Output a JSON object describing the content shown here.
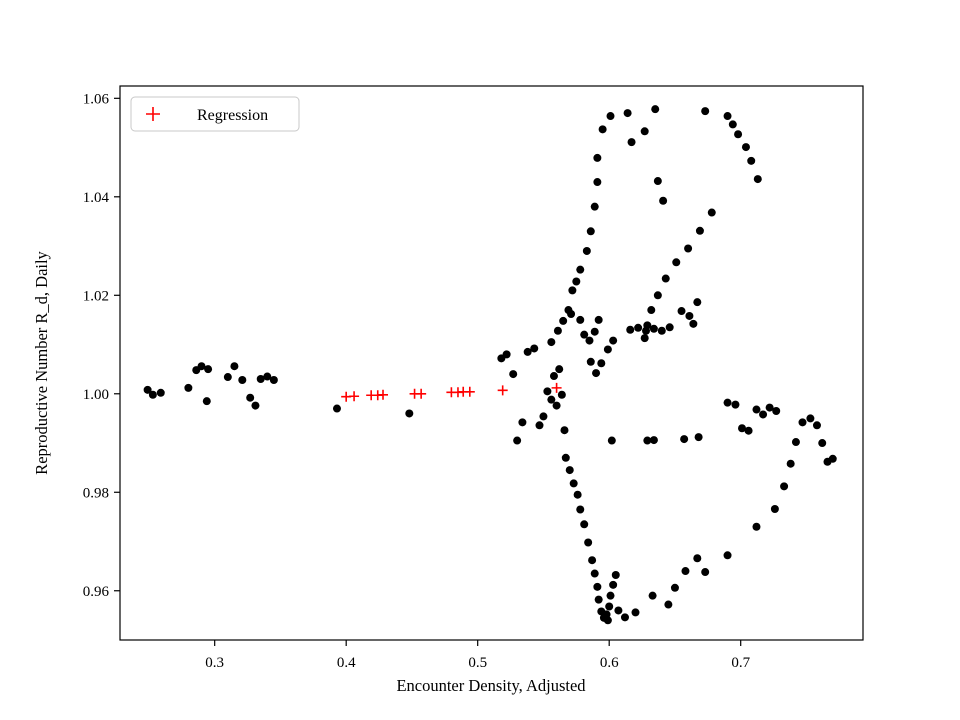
{
  "figure": {
    "background": "#ffffff"
  },
  "colors": {
    "scatter_points": "#000000",
    "regression_marker": "#ff0000",
    "axis": "#000000",
    "legend_border": "#c8c8c8"
  },
  "chart_data": {
    "type": "scatter",
    "title": "",
    "xlabel": "Encounter Density, Adjusted",
    "ylabel": "Reproductive Number R_d, Daily",
    "xlim": [
      0.228,
      0.793
    ],
    "ylim": [
      0.95,
      1.0625
    ],
    "xticks": [
      0.3,
      0.4,
      0.5,
      0.6,
      0.7
    ],
    "xtick_labels": [
      "0.3",
      "0.4",
      "0.5",
      "0.6",
      "0.7"
    ],
    "yticks": [
      0.96,
      0.98,
      1.0,
      1.02,
      1.04,
      1.06
    ],
    "ytick_labels": [
      "0.96",
      "0.98",
      "1.00",
      "1.02",
      "1.04",
      "1.06"
    ],
    "grid": false,
    "legend": {
      "position": "upper left",
      "entries": [
        {
          "label": "Regression",
          "marker": "plus",
          "color": "#ff0000"
        }
      ]
    },
    "series": [
      {
        "name": "observations",
        "type": "scatter",
        "marker": "circle",
        "color": "#000000",
        "points": [
          [
            0.249,
            1.0008
          ],
          [
            0.253,
            0.9998
          ],
          [
            0.259,
            1.0002
          ],
          [
            0.28,
            1.0012
          ],
          [
            0.286,
            1.0048
          ],
          [
            0.29,
            1.0056
          ],
          [
            0.295,
            1.005
          ],
          [
            0.294,
            0.9985
          ],
          [
            0.31,
            1.0034
          ],
          [
            0.315,
            1.0056
          ],
          [
            0.321,
            1.0028
          ],
          [
            0.327,
            0.9992
          ],
          [
            0.331,
            0.9976
          ],
          [
            0.335,
            1.003
          ],
          [
            0.34,
            1.0035
          ],
          [
            0.345,
            1.0028
          ],
          [
            0.393,
            0.997
          ],
          [
            0.448,
            0.996
          ],
          [
            0.518,
            1.0072
          ],
          [
            0.522,
            1.008
          ],
          [
            0.527,
            1.004
          ],
          [
            0.53,
            0.9905
          ],
          [
            0.534,
            0.9942
          ],
          [
            0.538,
            1.0085
          ],
          [
            0.543,
            1.0092
          ],
          [
            0.547,
            0.9936
          ],
          [
            0.55,
            0.9954
          ],
          [
            0.553,
            1.0005
          ],
          [
            0.556,
            0.9988
          ],
          [
            0.558,
            1.0036
          ],
          [
            0.56,
            0.9976
          ],
          [
            0.562,
            1.005
          ],
          [
            0.564,
            0.9998
          ],
          [
            0.566,
            0.9926
          ],
          [
            0.556,
            1.0105
          ],
          [
            0.561,
            1.0128
          ],
          [
            0.565,
            1.0148
          ],
          [
            0.569,
            1.017
          ],
          [
            0.572,
            1.021
          ],
          [
            0.575,
            1.0228
          ],
          [
            0.578,
            1.0252
          ],
          [
            0.571,
            1.0162
          ],
          [
            0.578,
            1.015
          ],
          [
            0.581,
            1.012
          ],
          [
            0.585,
            1.0108
          ],
          [
            0.589,
            1.0126
          ],
          [
            0.592,
            1.015
          ],
          [
            0.586,
            1.0065
          ],
          [
            0.59,
            1.0042
          ],
          [
            0.594,
            1.0062
          ],
          [
            0.599,
            1.009
          ],
          [
            0.603,
            1.0108
          ],
          [
            0.583,
            1.029
          ],
          [
            0.586,
            1.033
          ],
          [
            0.589,
            1.038
          ],
          [
            0.591,
            1.043
          ],
          [
            0.591,
            1.0479
          ],
          [
            0.595,
            1.0537
          ],
          [
            0.601,
            1.0564
          ],
          [
            0.614,
            1.057
          ],
          [
            0.617,
            1.0511
          ],
          [
            0.627,
            1.0533
          ],
          [
            0.635,
            1.0578
          ],
          [
            0.673,
            1.0574
          ],
          [
            0.69,
            1.0564
          ],
          [
            0.694,
            1.0547
          ],
          [
            0.698,
            1.0527
          ],
          [
            0.704,
            1.0501
          ],
          [
            0.708,
            1.0473
          ],
          [
            0.713,
            1.0436
          ],
          [
            0.637,
            1.0432
          ],
          [
            0.641,
            1.0392
          ],
          [
            0.678,
            1.0368
          ],
          [
            0.669,
            1.0331
          ],
          [
            0.66,
            1.0295
          ],
          [
            0.651,
            1.0267
          ],
          [
            0.643,
            1.0234
          ],
          [
            0.637,
            1.02
          ],
          [
            0.632,
            1.017
          ],
          [
            0.629,
            1.0139
          ],
          [
            0.627,
            1.0113
          ],
          [
            0.616,
            1.013
          ],
          [
            0.622,
            1.0134
          ],
          [
            0.628,
            1.0128
          ],
          [
            0.634,
            1.0132
          ],
          [
            0.64,
            1.0128
          ],
          [
            0.646,
            1.0135
          ],
          [
            0.655,
            1.0168
          ],
          [
            0.661,
            1.0158
          ],
          [
            0.667,
            1.0186
          ],
          [
            0.664,
            1.0142
          ],
          [
            0.567,
            0.987
          ],
          [
            0.57,
            0.9845
          ],
          [
            0.573,
            0.9818
          ],
          [
            0.576,
            0.9795
          ],
          [
            0.578,
            0.9765
          ],
          [
            0.581,
            0.9735
          ],
          [
            0.584,
            0.9698
          ],
          [
            0.587,
            0.9662
          ],
          [
            0.589,
            0.9635
          ],
          [
            0.591,
            0.9608
          ],
          [
            0.592,
            0.9582
          ],
          [
            0.594,
            0.9558
          ],
          [
            0.596,
            0.9545
          ],
          [
            0.598,
            0.9552
          ],
          [
            0.6,
            0.9568
          ],
          [
            0.601,
            0.959
          ],
          [
            0.603,
            0.9612
          ],
          [
            0.605,
            0.9632
          ],
          [
            0.599,
            0.954
          ],
          [
            0.607,
            0.956
          ],
          [
            0.612,
            0.9546
          ],
          [
            0.62,
            0.9556
          ],
          [
            0.633,
            0.959
          ],
          [
            0.645,
            0.9572
          ],
          [
            0.65,
            0.9606
          ],
          [
            0.658,
            0.964
          ],
          [
            0.667,
            0.9666
          ],
          [
            0.673,
            0.9638
          ],
          [
            0.69,
            0.9672
          ],
          [
            0.712,
            0.973
          ],
          [
            0.726,
            0.9766
          ],
          [
            0.733,
            0.9812
          ],
          [
            0.738,
            0.9858
          ],
          [
            0.742,
            0.9902
          ],
          [
            0.747,
            0.9942
          ],
          [
            0.753,
            0.995
          ],
          [
            0.758,
            0.9936
          ],
          [
            0.762,
            0.99
          ],
          [
            0.766,
            0.9862
          ],
          [
            0.77,
            0.9868
          ],
          [
            0.602,
            0.9905
          ],
          [
            0.629,
            0.9905
          ],
          [
            0.634,
            0.9906
          ],
          [
            0.657,
            0.9908
          ],
          [
            0.668,
            0.9912
          ],
          [
            0.69,
            0.9982
          ],
          [
            0.696,
            0.9978
          ],
          [
            0.701,
            0.993
          ],
          [
            0.706,
            0.9925
          ],
          [
            0.712,
            0.9968
          ],
          [
            0.717,
            0.9958
          ],
          [
            0.722,
            0.9972
          ],
          [
            0.727,
            0.9965
          ]
        ]
      },
      {
        "name": "Regression",
        "type": "scatter",
        "marker": "plus",
        "color": "#ff0000",
        "points": [
          [
            0.4,
            0.9994
          ],
          [
            0.406,
            0.9995
          ],
          [
            0.419,
            0.9997
          ],
          [
            0.424,
            0.9997
          ],
          [
            0.428,
            0.9998
          ],
          [
            0.452,
            1.0
          ],
          [
            0.457,
            1.0
          ],
          [
            0.48,
            1.0003
          ],
          [
            0.485,
            1.0003
          ],
          [
            0.489,
            1.0004
          ],
          [
            0.494,
            1.0004
          ],
          [
            0.519,
            1.0007
          ],
          [
            0.56,
            1.0012
          ]
        ]
      }
    ]
  }
}
